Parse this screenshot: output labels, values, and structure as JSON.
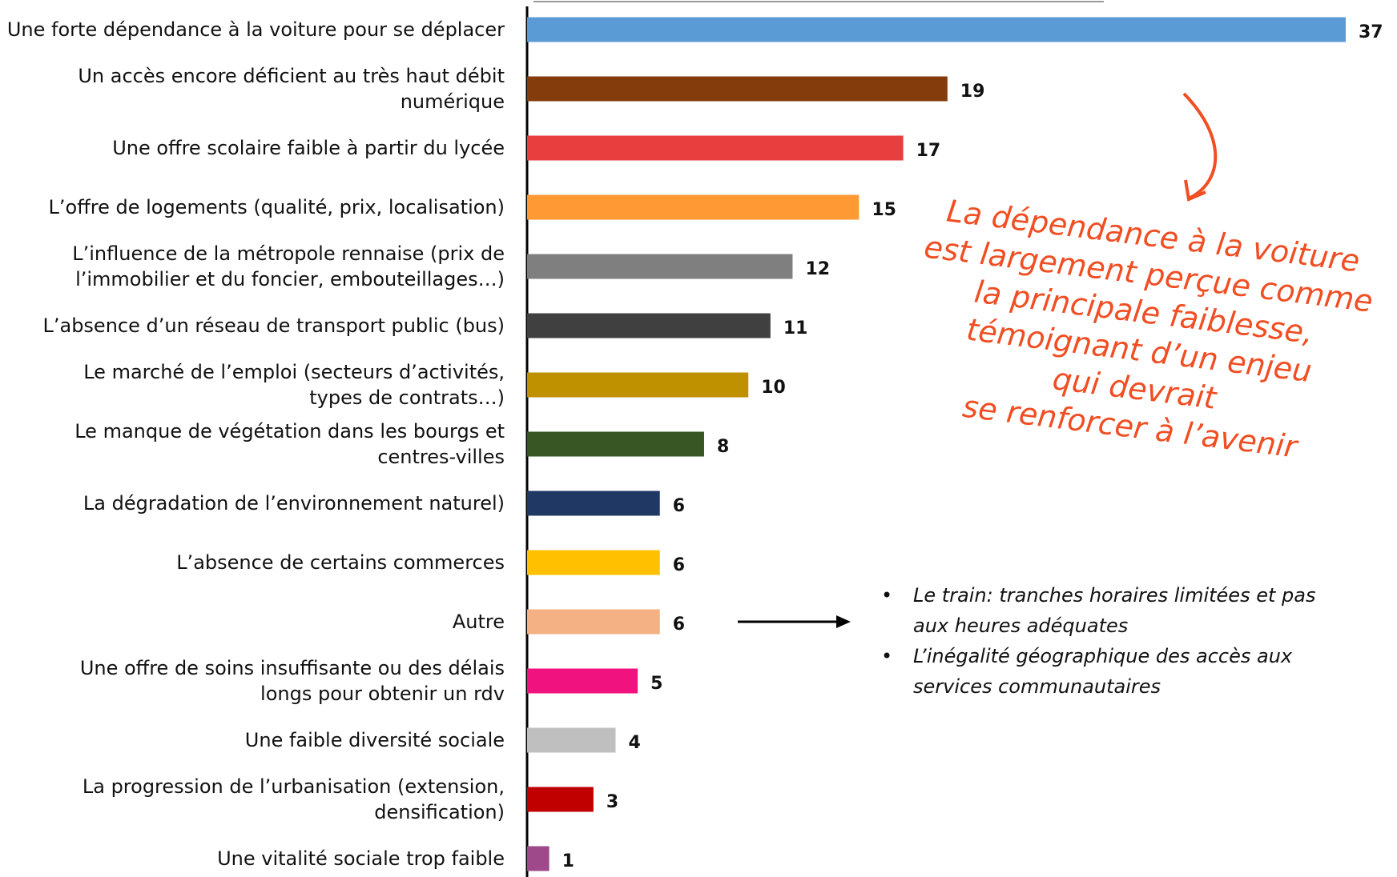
{
  "chart_data": {
    "type": "bar",
    "orientation": "horizontal",
    "categories": [
      "Une forte dépendance à la voiture pour se déplacer",
      "Un accès encore déficient au très haut débit\nnumérique",
      "Une offre scolaire faible à partir du lycée",
      "L’offre de logements (qualité, prix, localisation)",
      "L’influence de la métropole rennaise (prix de\nl’immobilier et du foncier, embouteillages…)",
      "L’absence d’un réseau de transport public (bus)",
      "Le marché de l’emploi (secteurs d’activités,\ntypes de contrats…)",
      "Le manque de végétation dans les bourgs et\ncentres-villes",
      "La dégradation de l’environnement naturel)",
      "L’absence de certains commerces",
      "Autre",
      "Une offre de soins insuffisante ou des délais\nlongs pour obtenir un rdv",
      "Une faible diversité sociale",
      "La progression de l’urbanisation (extension,\ndensification)",
      "Une vitalité sociale trop faible"
    ],
    "values": [
      37,
      19,
      17,
      15,
      12,
      11,
      10,
      8,
      6,
      6,
      6,
      5,
      4,
      3,
      1
    ],
    "colors": [
      "#5b9bd5",
      "#843c0c",
      "#e83e3e",
      "#ff9933",
      "#7f7f7f",
      "#404040",
      "#bf9000",
      "#375623",
      "#203864",
      "#ffc000",
      "#f4b183",
      "#f0127f",
      "#bfbfbf",
      "#c00000",
      "#9e4a8a"
    ],
    "xlim": [
      0,
      37
    ],
    "annotation": "La dépendance à la voiture\nest largement perçue comme\nla principale faiblesse,\ntémoignant d’un enjeu\nqui devrait\nse renforcer à l’avenir",
    "notes": [
      "Le train: tranches horaires limitées et pas aux heures adéquates",
      "L’inégalité géographique des accès aux services communautaires"
    ]
  }
}
